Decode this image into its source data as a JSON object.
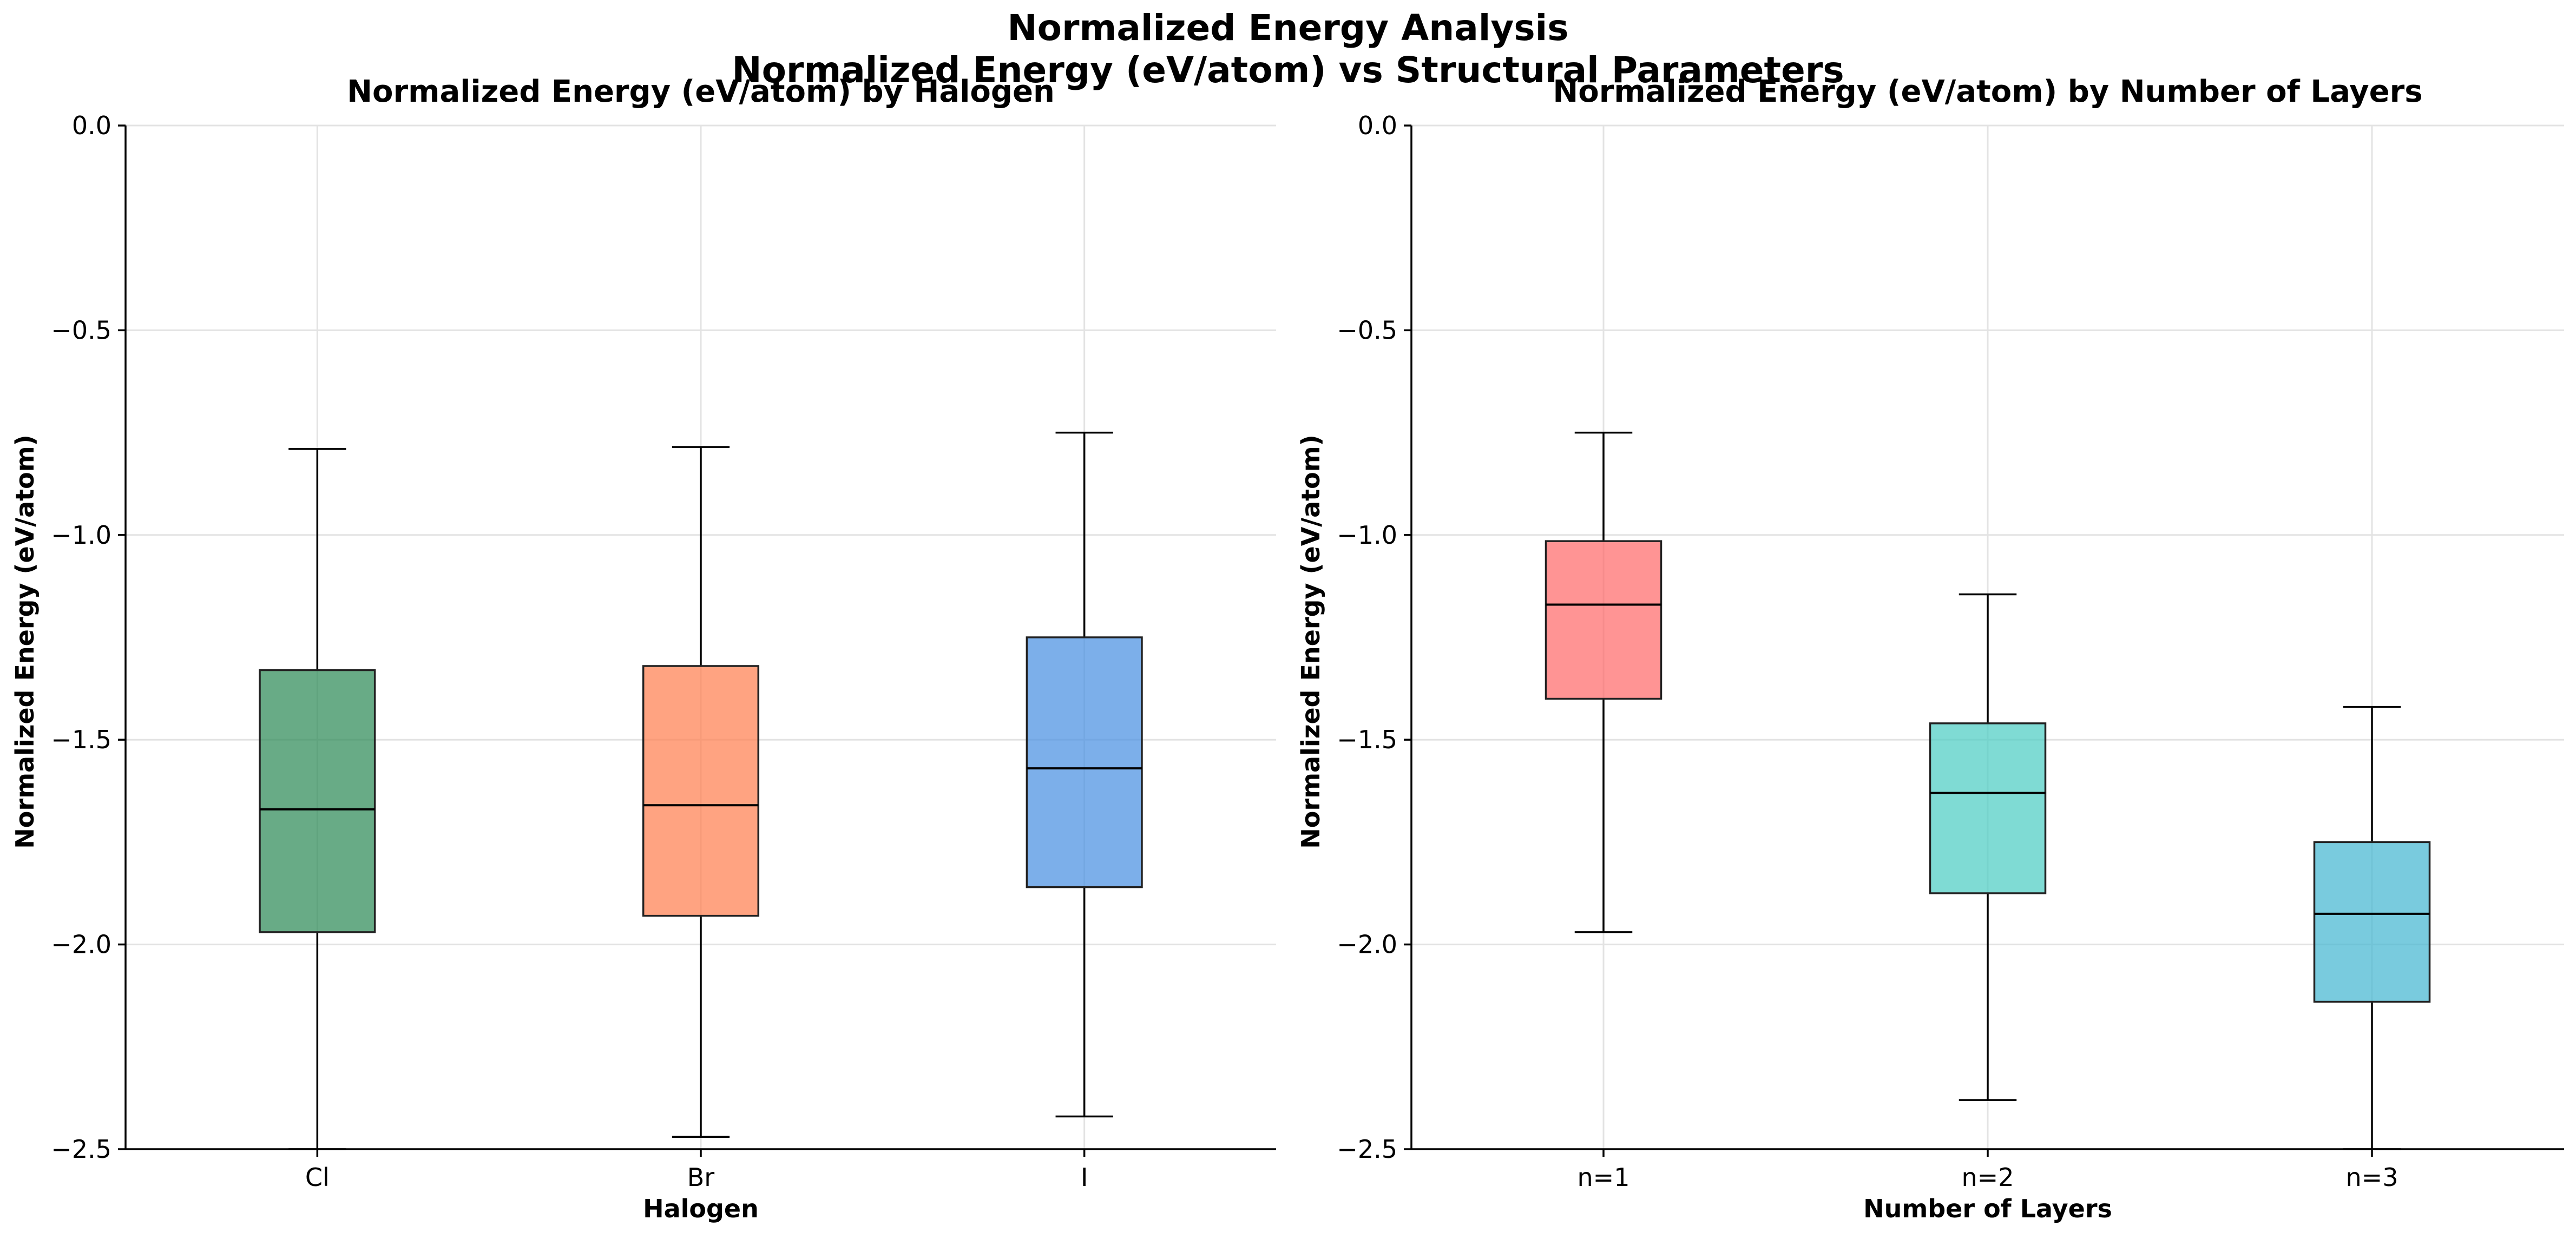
{
  "figure": {
    "suptitle_line1": "Normalized Energy Analysis",
    "suptitle_line2": "Normalized Energy (eV/atom) vs Structural Parameters"
  },
  "chart_data": [
    {
      "type": "box",
      "title": "Normalized Energy (eV/atom) by Halogen",
      "xlabel": "Halogen",
      "ylabel": "Normalized Energy (eV/atom)",
      "ylim": [
        -2.5,
        0.0
      ],
      "yticks": [
        0.0,
        -0.5,
        -1.0,
        -1.5,
        -2.0,
        -2.5
      ],
      "ytick_labels": [
        "0.0",
        "−0.5",
        "−1.0",
        "−1.5",
        "−2.0",
        "−2.5"
      ],
      "grid": true,
      "categories": [
        "Cl",
        "Br",
        "I"
      ],
      "boxes": [
        {
          "category": "Cl",
          "whisker_low": -2.5,
          "q1": -1.97,
          "median": -1.67,
          "q3": -1.33,
          "whisker_high": -0.79,
          "color": "#2e8b57"
        },
        {
          "category": "Br",
          "whisker_low": -2.47,
          "q1": -1.93,
          "median": -1.66,
          "q3": -1.32,
          "whisker_high": -0.785,
          "color": "#ff7f50"
        },
        {
          "category": "I",
          "whisker_low": -2.42,
          "q1": -1.86,
          "median": -1.57,
          "q3": -1.25,
          "whisker_high": -0.75,
          "color": "#4a90e2"
        }
      ]
    },
    {
      "type": "box",
      "title": "Normalized Energy (eV/atom) by Number of Layers",
      "xlabel": "Number of Layers",
      "ylabel": "Normalized Energy (eV/atom)",
      "ylim": [
        -2.5,
        0.0
      ],
      "yticks": [
        0.0,
        -0.5,
        -1.0,
        -1.5,
        -2.0,
        -2.5
      ],
      "ytick_labels": [
        "0.0",
        "−0.5",
        "−1.0",
        "−1.5",
        "−2.0",
        "−2.5"
      ],
      "grid": true,
      "categories": [
        "n=1",
        "n=2",
        "n=3"
      ],
      "boxes": [
        {
          "category": "n=1",
          "whisker_low": -1.97,
          "q1": -1.4,
          "median": -1.17,
          "q3": -1.015,
          "whisker_high": -0.75,
          "color": "#ff6b6b"
        },
        {
          "category": "n=2",
          "whisker_low": -2.38,
          "q1": -1.875,
          "median": -1.63,
          "q3": -1.46,
          "whisker_high": -1.145,
          "color": "#4ecdc4"
        },
        {
          "category": "n=3",
          "whisker_low": -2.5,
          "q1": -2.14,
          "median": -1.925,
          "q3": -1.75,
          "whisker_high": -1.42,
          "color": "#45b7d1"
        }
      ]
    }
  ]
}
